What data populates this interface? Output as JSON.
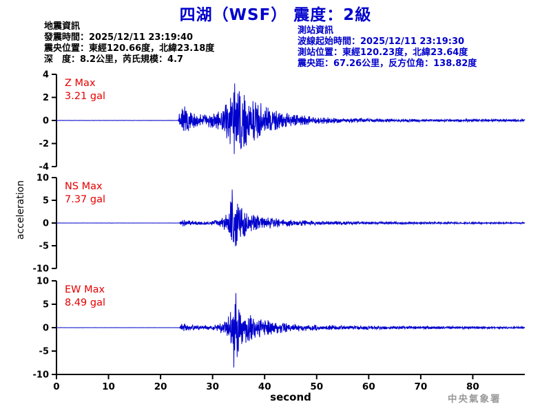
{
  "title": "四湖（WSF） 震度：2級",
  "quake_info": {
    "heading": "地震資訊",
    "origin_time": "發震時間：2025/12/11 23:19:40",
    "epicenter": "震央位置：東經120.66度，北緯23.18度",
    "depth_magnitude": "深　度：8.2公里，芮氏規模：4.7"
  },
  "station_info": {
    "heading": "測站資訊",
    "wave_start_time": "波線起始時間：2025/12/11 23:19:30",
    "station_location": "測站位置：東經120.23度，北緯23.64度",
    "distance_azimuth": "震央距：67.26公里，反方位角：138.82度"
  },
  "axis": {
    "xlabel": "second",
    "ylabel": "acceleration"
  },
  "footer": {
    "agency": "中央氣象署"
  },
  "colors": {
    "title_blue": "#0000cc",
    "info_blue": "#0000cc",
    "trace_blue": "#0000cc",
    "max_label_red": "#e60000",
    "axis_black": "#000000",
    "watermark_gray": "#999999"
  },
  "chart_data": [
    {
      "type": "line",
      "component": "Z",
      "label": "Z Max",
      "max_label": "3.21 gal",
      "max_gal": 3.21,
      "unit": "gal",
      "onset_s": 23.8,
      "peak_s": 34.2,
      "peak_sign": 1,
      "ylim": [
        -4,
        4
      ],
      "yticks": [
        4,
        2,
        0,
        -2,
        -4
      ],
      "xlim": [
        0,
        90
      ],
      "xticks": [
        0,
        10,
        20,
        30,
        40,
        50,
        60,
        70,
        80
      ],
      "envelope": [
        [
          0,
          0.012
        ],
        [
          23.4,
          0.012
        ],
        [
          23.9,
          1.5
        ],
        [
          25,
          1.1
        ],
        [
          26.5,
          0.6
        ],
        [
          28,
          0.55
        ],
        [
          30,
          0.65
        ],
        [
          32,
          1.0
        ],
        [
          33,
          1.8
        ],
        [
          34,
          3.1
        ],
        [
          35,
          2.8
        ],
        [
          36.5,
          2.2
        ],
        [
          38,
          1.9
        ],
        [
          40,
          1.4
        ],
        [
          42,
          0.9
        ],
        [
          45,
          0.55
        ],
        [
          50,
          0.32
        ],
        [
          55,
          0.22
        ],
        [
          62,
          0.16
        ],
        [
          70,
          0.13
        ],
        [
          80,
          0.11
        ],
        [
          90,
          0.1
        ]
      ]
    },
    {
      "type": "line",
      "component": "NS",
      "label": "NS Max",
      "max_label": "7.37 gal",
      "max_gal": 7.37,
      "unit": "gal",
      "onset_s": 24.0,
      "peak_s": 33.8,
      "peak_sign": 1,
      "ylim": [
        -10,
        10
      ],
      "yticks": [
        10,
        5,
        0,
        -5,
        -10
      ],
      "xlim": [
        0,
        90
      ],
      "xticks": [
        0,
        10,
        20,
        30,
        40,
        50,
        60,
        70,
        80
      ],
      "envelope": [
        [
          0,
          0.012
        ],
        [
          23.6,
          0.012
        ],
        [
          24,
          0.8
        ],
        [
          25.5,
          0.55
        ],
        [
          28,
          0.45
        ],
        [
          30,
          0.55
        ],
        [
          32,
          1.2
        ],
        [
          33,
          2.5
        ],
        [
          33.8,
          7.3
        ],
        [
          34.8,
          4.5
        ],
        [
          36,
          3.0
        ],
        [
          38,
          2.0
        ],
        [
          40,
          1.4
        ],
        [
          43,
          0.9
        ],
        [
          47,
          0.6
        ],
        [
          52,
          0.42
        ],
        [
          60,
          0.3
        ],
        [
          70,
          0.24
        ],
        [
          80,
          0.2
        ],
        [
          90,
          0.18
        ]
      ]
    },
    {
      "type": "line",
      "component": "EW",
      "label": "EW Max",
      "max_label": "8.49 gal",
      "max_gal": 8.49,
      "unit": "gal",
      "onset_s": 24.0,
      "peak_s": 34.1,
      "peak_sign": -1,
      "ylim": [
        -10,
        10
      ],
      "yticks": [
        10,
        5,
        0,
        -5,
        -10
      ],
      "xlim": [
        0,
        90
      ],
      "xticks": [
        0,
        10,
        20,
        30,
        40,
        50,
        60,
        70,
        80
      ],
      "envelope": [
        [
          0,
          0.012
        ],
        [
          23.6,
          0.012
        ],
        [
          24,
          0.9
        ],
        [
          25.5,
          0.6
        ],
        [
          28,
          0.5
        ],
        [
          30,
          0.6
        ],
        [
          32,
          1.3
        ],
        [
          33.2,
          3.0
        ],
        [
          34.2,
          8.4
        ],
        [
          35.2,
          5.0
        ],
        [
          36.5,
          3.2
        ],
        [
          38.5,
          2.2
        ],
        [
          41,
          1.5
        ],
        [
          44,
          1.0
        ],
        [
          48,
          0.7
        ],
        [
          54,
          0.5
        ],
        [
          62,
          0.38
        ],
        [
          72,
          0.3
        ],
        [
          82,
          0.26
        ],
        [
          90,
          0.24
        ]
      ]
    }
  ]
}
